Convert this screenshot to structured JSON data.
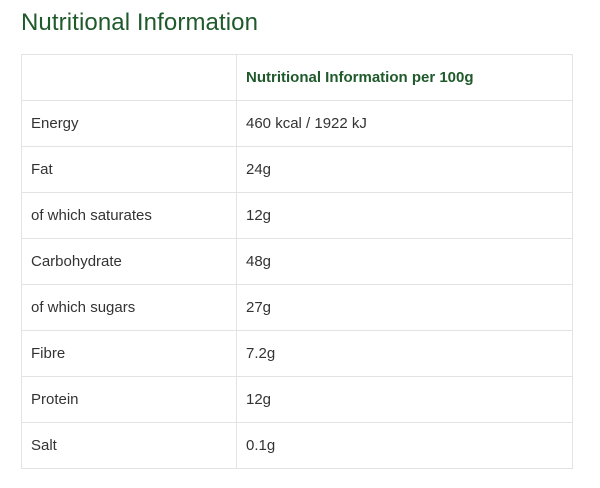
{
  "title": "Nutritional Information",
  "table": {
    "header": [
      "",
      "Nutritional Information per 100g"
    ],
    "rows": [
      {
        "label": "Energy",
        "value": "460 kcal / 1922 kJ"
      },
      {
        "label": "Fat",
        "value": "24g"
      },
      {
        "label": "of which saturates",
        "value": "12g"
      },
      {
        "label": "Carbohydrate",
        "value": "48g"
      },
      {
        "label": "of which sugars",
        "value": "27g"
      },
      {
        "label": "Fibre",
        "value": "7.2g"
      },
      {
        "label": "Protein",
        "value": "12g"
      },
      {
        "label": "Salt",
        "value": "0.1g"
      }
    ]
  },
  "colors": {
    "accent": "#1f5a2b",
    "text": "#333333",
    "border": "#e3e3e3"
  }
}
